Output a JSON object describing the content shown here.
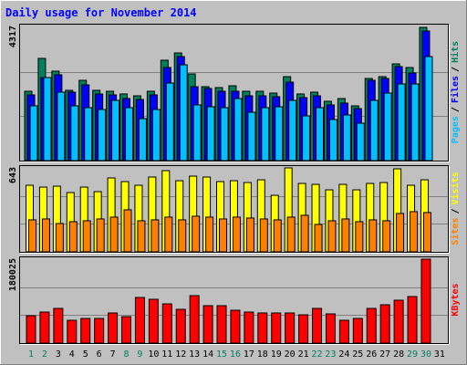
{
  "title": "Daily usage for November 2014",
  "categories": [
    "1",
    "2",
    "3",
    "4",
    "5",
    "6",
    "7",
    "8",
    "9",
    "10",
    "11",
    "12",
    "13",
    "14",
    "15",
    "16",
    "17",
    "18",
    "19",
    "20",
    "21",
    "22",
    "23",
    "24",
    "25",
    "26",
    "27",
    "28",
    "29",
    "30",
    "31"
  ],
  "category_colors": [
    "#00805c",
    "#00805c",
    "#000000",
    "#000000",
    "#000000",
    "#000000",
    "#000000",
    "#00805c",
    "#00805c",
    "#000000",
    "#000000",
    "#000000",
    "#000000",
    "#000000",
    "#00805c",
    "#00805c",
    "#000000",
    "#000000",
    "#000000",
    "#000000",
    "#000000",
    "#00805c",
    "#00805c",
    "#000000",
    "#000000",
    "#000000",
    "#000000",
    "#000000",
    "#00805c",
    "#00805c",
    "#000000"
  ],
  "legend_separator": "/",
  "chart_data": [
    {
      "type": "bar",
      "ylim": [
        0,
        4317
      ],
      "yticks": [
        4317
      ],
      "series": [
        {
          "name": "Hits",
          "color": "#00805c",
          "values": [
            2247,
            3312,
            2898,
            2277,
            2602,
            2277,
            2247,
            2159,
            2099,
            2247,
            3253,
            3489,
            2809,
            2395,
            2366,
            2425,
            2247,
            2247,
            2188,
            2720,
            2159,
            2218,
            1922,
            2011,
            1774,
            2661,
            2720,
            3134,
            3016,
            4317,
            0
          ]
        },
        {
          "name": "Files",
          "color": "#0000ff",
          "values": [
            2129,
            2691,
            2780,
            2218,
            2454,
            2159,
            2129,
            2011,
            1981,
            2129,
            3016,
            3371,
            2395,
            2336,
            2247,
            2247,
            2099,
            2099,
            2070,
            2543,
            2040,
            2099,
            1804,
            1863,
            1685,
            2602,
            2661,
            3046,
            2839,
            4199,
            0
          ]
        },
        {
          "name": "Pages",
          "color": "#00c0ff",
          "values": [
            1774,
            2691,
            2218,
            1774,
            1715,
            1656,
            1952,
            1715,
            1360,
            1656,
            2513,
            3105,
            1804,
            1745,
            1715,
            2011,
            1567,
            1715,
            1745,
            1952,
            1449,
            1715,
            1331,
            1479,
            1212,
            1952,
            2188,
            2484,
            2484,
            3371,
            0
          ]
        }
      ]
    },
    {
      "type": "bar",
      "ylim": [
        0,
        643
      ],
      "yticks": [
        643
      ],
      "series": [
        {
          "name": "Visits",
          "color": "#ffff00",
          "values": [
            510,
            496,
            503,
            454,
            496,
            461,
            566,
            538,
            510,
            573,
            622,
            545,
            580,
            573,
            538,
            545,
            531,
            552,
            433,
            643,
            524,
            517,
            475,
            517,
            475,
            524,
            531,
            636,
            510,
            552,
            0
          ]
        },
        {
          "name": "Sites",
          "color": "#ff8000",
          "values": [
            245,
            252,
            217,
            231,
            238,
            252,
            266,
            322,
            238,
            245,
            266,
            245,
            273,
            266,
            252,
            266,
            259,
            252,
            245,
            266,
            280,
            210,
            238,
            252,
            231,
            245,
            238,
            294,
            308,
            301,
            0
          ]
        }
      ]
    },
    {
      "type": "bar",
      "ylim": [
        0,
        180025
      ],
      "yticks": [
        180025
      ],
      "series": [
        {
          "name": "KBytes",
          "color": "#ff0000",
          "values": [
            58710,
            66538,
            74366,
            48925,
            52839,
            52839,
            64581,
            56753,
            97850,
            93936,
            84151,
            72409,
            101764,
            80237,
            80237,
            70452,
            66538,
            64581,
            64581,
            64581,
            60667,
            74366,
            62624,
            48925,
            52839,
            74366,
            82194,
            91979,
            99807,
            180025,
            0
          ]
        }
      ]
    }
  ]
}
